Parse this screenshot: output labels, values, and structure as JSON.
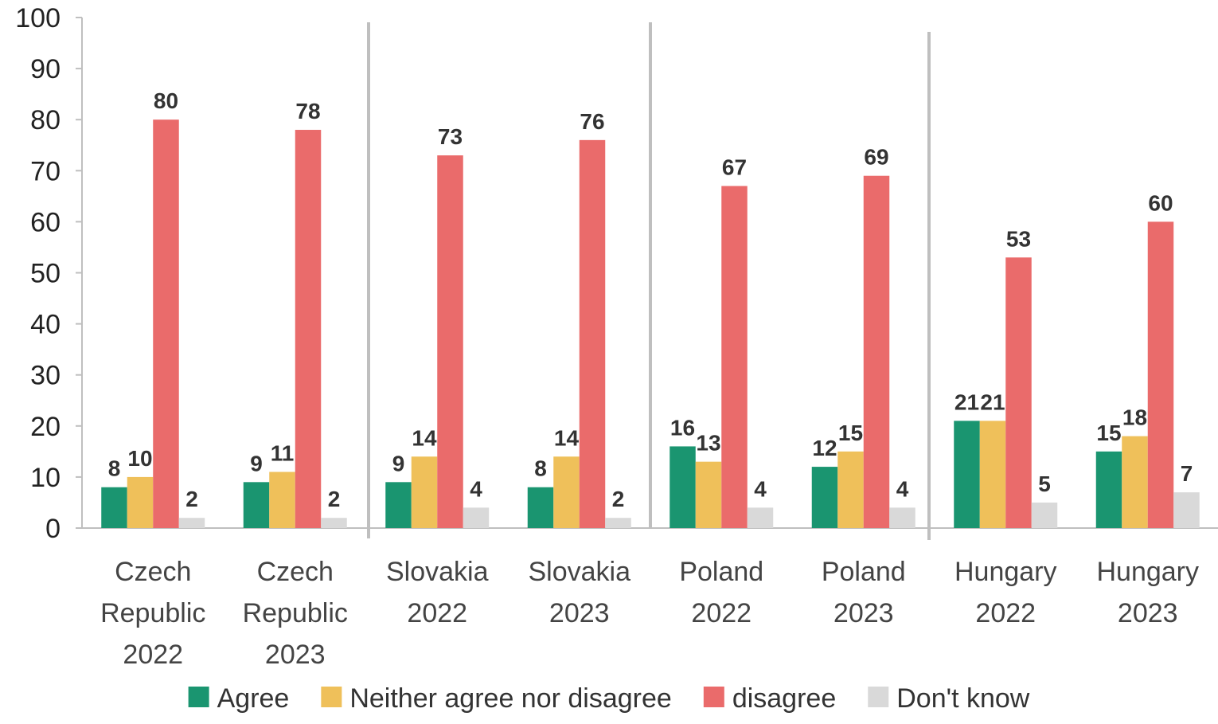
{
  "chart_data": {
    "type": "bar",
    "categories": [
      [
        "Czech",
        "Republic",
        "2022"
      ],
      [
        "Czech",
        "Republic",
        "2023"
      ],
      [
        "Slovakia",
        "2022"
      ],
      [
        "Slovakia",
        "2023"
      ],
      [
        "Poland",
        "2022"
      ],
      [
        "Poland",
        "2023"
      ],
      [
        "Hungary",
        "2022"
      ],
      [
        "Hungary",
        "2023"
      ]
    ],
    "series": [
      {
        "name": "Agree",
        "color": "#1a9570",
        "values": [
          8,
          9,
          9,
          8,
          16,
          12,
          21,
          15
        ]
      },
      {
        "name": "Neither agree nor disagree",
        "color": "#efc05a",
        "values": [
          10,
          11,
          14,
          14,
          13,
          15,
          21,
          18
        ]
      },
      {
        "name": "disagree",
        "color": "#ea6b6b",
        "values": [
          80,
          78,
          73,
          76,
          67,
          69,
          53,
          60
        ]
      },
      {
        "name": "Don't know",
        "color": "#d9d9d9",
        "values": [
          2,
          2,
          4,
          2,
          4,
          4,
          5,
          7
        ]
      }
    ],
    "ylim": [
      0,
      100
    ],
    "yticks": [
      0,
      10,
      20,
      30,
      40,
      50,
      60,
      70,
      80,
      90,
      100
    ],
    "grid": false,
    "group_separators": true,
    "legend_position": "bottom"
  }
}
